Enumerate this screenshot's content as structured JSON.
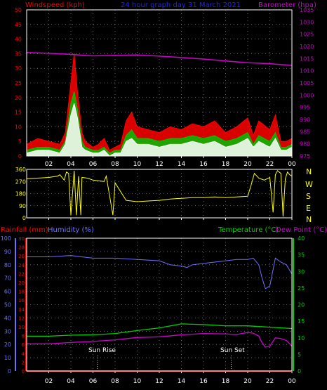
{
  "chart_data": [
    {
      "type": "line",
      "title": "24 hour graph day 31 March 2021",
      "ylabel_left": "Windspeed (kph)",
      "ylabel_right": "Barometer (hpa)",
      "x_ticks": [
        "02",
        "04",
        "06",
        "08",
        "10",
        "12",
        "14",
        "16",
        "18",
        "20",
        "22",
        "00"
      ],
      "y_ticks_left": [
        "0",
        "5",
        "10",
        "15",
        "20",
        "25",
        "30",
        "35",
        "40",
        "45",
        "50"
      ],
      "y_ticks_right": [
        "975",
        "980",
        "985",
        "990",
        "995",
        "1000",
        "1005",
        "1010",
        "1015",
        "1020",
        "1025",
        "1030",
        "1035"
      ],
      "xlim": [
        0,
        24
      ],
      "ylim_left": [
        0,
        50
      ],
      "ylim_right": [
        975,
        1035
      ],
      "grid": true,
      "colors": {
        "gust": "#ff0000",
        "average": "#00c000",
        "speed": "#ffffff",
        "barometer": "#d000d0"
      },
      "series": [
        {
          "axis": "left",
          "color": "#ff0000",
          "x": [
            0,
            1,
            2,
            3,
            3.5,
            4,
            4.3,
            4.6,
            5,
            5.3,
            6,
            6.5,
            7,
            7.5,
            8,
            8.5,
            9,
            9.5,
            10,
            11,
            12,
            13,
            14,
            15,
            16,
            17,
            18,
            19,
            20,
            20.5,
            21,
            22,
            22.5,
            23,
            23.5,
            24
          ],
          "values": [
            4,
            6,
            5,
            4,
            8,
            25,
            35,
            22,
            8,
            5,
            3,
            4,
            6,
            2,
            3,
            4,
            12,
            15,
            10,
            9,
            8,
            10,
            9,
            11,
            10,
            12,
            8,
            10,
            13,
            7,
            12,
            9,
            14,
            5,
            5,
            6
          ]
        },
        {
          "axis": "left",
          "color": "#00c000",
          "x": [
            0,
            1,
            2,
            3,
            3.5,
            4,
            4.3,
            4.6,
            5,
            5.3,
            6,
            6.5,
            7,
            7.5,
            8,
            8.5,
            9,
            9.5,
            10,
            11,
            12,
            13,
            14,
            15,
            16,
            17,
            18,
            19,
            20,
            20.5,
            21,
            22,
            22.5,
            23,
            23.5,
            24
          ],
          "values": [
            2,
            3,
            3,
            2,
            5,
            18,
            22,
            16,
            5,
            3,
            2,
            2,
            3,
            1,
            2,
            2,
            7,
            9,
            6,
            6,
            5,
            6,
            6,
            7,
            6,
            7,
            5,
            6,
            8,
            4,
            7,
            5,
            8,
            3,
            3,
            4
          ]
        },
        {
          "axis": "left",
          "color": "#ffffff",
          "x": [
            0,
            1,
            2,
            3,
            3.5,
            4,
            4.3,
            4.6,
            5,
            5.3,
            6,
            6.5,
            7,
            7.5,
            8,
            8.5,
            9,
            9.5,
            10,
            11,
            12,
            13,
            14,
            15,
            16,
            17,
            18,
            19,
            20,
            20.5,
            21,
            22,
            22.5,
            23,
            23.5,
            24
          ],
          "values": [
            1,
            2,
            2,
            1,
            4,
            14,
            18,
            13,
            3,
            2,
            1,
            1,
            2,
            0,
            1,
            1,
            5,
            6,
            4,
            4,
            3,
            4,
            4,
            5,
            4,
            5,
            3,
            4,
            6,
            3,
            5,
            3,
            6,
            2,
            2,
            3
          ]
        },
        {
          "axis": "right",
          "color": "#d000d0",
          "x": [
            0,
            2,
            4,
            6,
            8,
            10,
            12,
            14,
            16,
            18,
            20,
            22,
            24
          ],
          "values": [
            1017.5,
            1017.2,
            1016.7,
            1016.1,
            1016.3,
            1016.5,
            1016.0,
            1015.4,
            1014.8,
            1014.0,
            1013.3,
            1012.9,
            1012.2
          ]
        }
      ]
    },
    {
      "type": "line",
      "ylabel_right_letters": [
        "N",
        "W",
        "S",
        "E",
        "N"
      ],
      "x_ticks": [
        "02",
        "04",
        "06",
        "08",
        "10",
        "12",
        "14",
        "16",
        "18",
        "20",
        "22",
        "00"
      ],
      "y_ticks_left": [
        "0",
        "90",
        "180",
        "270",
        "360"
      ],
      "xlim": [
        0,
        24
      ],
      "ylim": [
        0,
        360
      ],
      "grid": true,
      "colors": {
        "direction": "#ffff00"
      },
      "series": [
        {
          "color": "#ffff00",
          "x": [
            0,
            1,
            2,
            2.8,
            3,
            3.4,
            3.6,
            3.8,
            4,
            4.2,
            4.3,
            4.5,
            4.7,
            4.9,
            5,
            5.5,
            6,
            6.5,
            7,
            7.2,
            7.8,
            8,
            9,
            10,
            11,
            12,
            13,
            14,
            15,
            16,
            17,
            18,
            19,
            20,
            20.3,
            20.5,
            20.6,
            21,
            21.5,
            22,
            22.3,
            22.5,
            22.7,
            23,
            23.2,
            23.4,
            23.6,
            23.8,
            24
          ],
          "values": [
            290,
            295,
            300,
            310,
            320,
            280,
            340,
            330,
            20,
            240,
            350,
            20,
            310,
            20,
            300,
            295,
            280,
            275,
            270,
            310,
            20,
            260,
            130,
            120,
            125,
            130,
            140,
            145,
            150,
            150,
            155,
            150,
            155,
            160,
            240,
            300,
            330,
            295,
            280,
            300,
            40,
            320,
            350,
            330,
            10,
            290,
            340,
            320,
            310
          ]
        }
      ]
    },
    {
      "type": "line",
      "ylabel_left_1": "Rainfall (mm)",
      "ylabel_left_2": "Humidity (%)",
      "ylabel_right_1": "Temperature (°C)",
      "ylabel_right_2": "Dew Point (°C)",
      "annotations": [
        "Sun Rise",
        "Sun Set"
      ],
      "annotation_x": [
        6.4,
        18.5
      ],
      "x_ticks": [
        "02",
        "04",
        "06",
        "08",
        "10",
        "12",
        "14",
        "16",
        "18",
        "20",
        "22",
        "00"
      ],
      "y_ticks_humidity": [
        "0",
        "10",
        "20",
        "30",
        "40",
        "50",
        "60",
        "70",
        "80",
        "90",
        "100"
      ],
      "y_ticks_rain": [
        "0",
        "2",
        "4",
        "6",
        "8",
        "10",
        "12",
        "14",
        "16",
        "18",
        "20",
        "22",
        "24",
        "26",
        "28",
        "30"
      ],
      "y_ticks_temp": [
        "0",
        "5",
        "10",
        "15",
        "20",
        "25",
        "30",
        "35",
        "40"
      ],
      "xlim": [
        0,
        24
      ],
      "ylim_humidity": [
        0,
        100
      ],
      "ylim_rain": [
        0,
        30
      ],
      "ylim_temp": [
        0,
        40
      ],
      "grid": true,
      "colors": {
        "humidity": "#7070ff",
        "temperature": "#00d000",
        "dewpoint": "#d000d0",
        "rain": "#ff0000"
      },
      "series": [
        {
          "axis": "humidity",
          "color": "#7070ff",
          "x": [
            0,
            2,
            4,
            6,
            8,
            10,
            12,
            13,
            14,
            14.5,
            15,
            16,
            17,
            18,
            19,
            20,
            20.5,
            21,
            21.3,
            21.6,
            22,
            22.5,
            23,
            23.5,
            24
          ],
          "values": [
            86,
            86,
            87,
            85,
            85,
            84,
            83,
            80,
            79,
            78,
            80,
            81,
            82,
            83,
            84,
            84,
            85,
            80,
            70,
            62,
            64,
            85,
            82,
            80,
            73
          ]
        },
        {
          "axis": "temp",
          "color": "#00d000",
          "x": [
            0,
            2,
            4,
            6,
            8,
            10,
            12,
            14,
            16,
            18,
            20,
            22,
            24
          ],
          "values": [
            10.5,
            10.5,
            10.8,
            10.9,
            11.3,
            12.2,
            13.0,
            14.2,
            14.0,
            13.6,
            13.6,
            13.2,
            12.8
          ]
        },
        {
          "axis": "temp",
          "color": "#d000d0",
          "x": [
            0,
            2,
            4,
            6,
            8,
            10,
            12,
            14,
            16,
            18,
            19,
            20,
            20.5,
            21,
            21.3,
            21.6,
            22,
            22.5,
            23,
            23.5,
            24
          ],
          "values": [
            8.2,
            8.2,
            8.6,
            8.9,
            9.4,
            10.1,
            10.3,
            10.9,
            11.3,
            11.2,
            11.0,
            11.6,
            11.4,
            10.5,
            8.5,
            7.2,
            7.5,
            10.0,
            9.8,
            9.2,
            7.5
          ]
        },
        {
          "axis": "rain",
          "color": "#ff0000",
          "x": [
            0,
            24
          ],
          "values": [
            0,
            0
          ]
        }
      ]
    }
  ]
}
